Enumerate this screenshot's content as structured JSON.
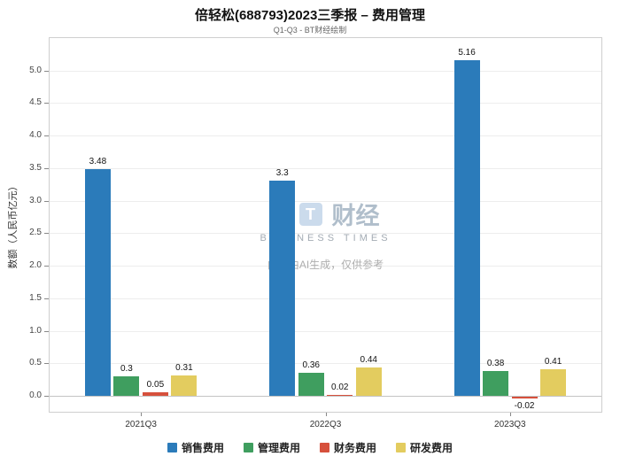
{
  "chart_data": {
    "type": "bar",
    "title": "倍轻松(688793)2023三季报 – 费用管理",
    "subtitle": "Q1-Q3 - BT财经绘制",
    "ylabel": "数额（人民币亿元）",
    "xlabel": "",
    "categories": [
      "2021Q3",
      "2022Q3",
      "2023Q3"
    ],
    "series": [
      {
        "name": "销售费用",
        "color": "#2b7bba",
        "values": [
          3.48,
          3.3,
          5.16
        ],
        "labels": [
          "3.48",
          "3.3",
          "5.16"
        ]
      },
      {
        "name": "管理费用",
        "color": "#3f9e5f",
        "values": [
          0.3,
          0.36,
          0.38
        ],
        "labels": [
          "0.3",
          "0.36",
          "0.38"
        ]
      },
      {
        "name": "财务费用",
        "color": "#d6503c",
        "values": [
          0.05,
          0.02,
          -0.02
        ],
        "labels": [
          "0.05",
          "0.02",
          "-0.02"
        ]
      },
      {
        "name": "研发费用",
        "color": "#e3cc5f",
        "values": [
          0.31,
          0.44,
          0.41
        ],
        "labels": [
          "0.31",
          "0.44",
          "0.41"
        ]
      }
    ],
    "yticks": [
      0.0,
      0.5,
      1.0,
      1.5,
      2.0,
      2.5,
      3.0,
      3.5,
      4.0,
      4.5,
      5.0
    ],
    "ylim": [
      -0.26,
      5.5
    ],
    "grid": true,
    "legend_position": "bottom"
  },
  "watermark": {
    "logo_letters": [
      "B",
      "T"
    ],
    "logo_text": "财经",
    "logo_sub": "BUSINESS TIMES",
    "disclaimer": "内容由AI生成，仅供参考"
  }
}
